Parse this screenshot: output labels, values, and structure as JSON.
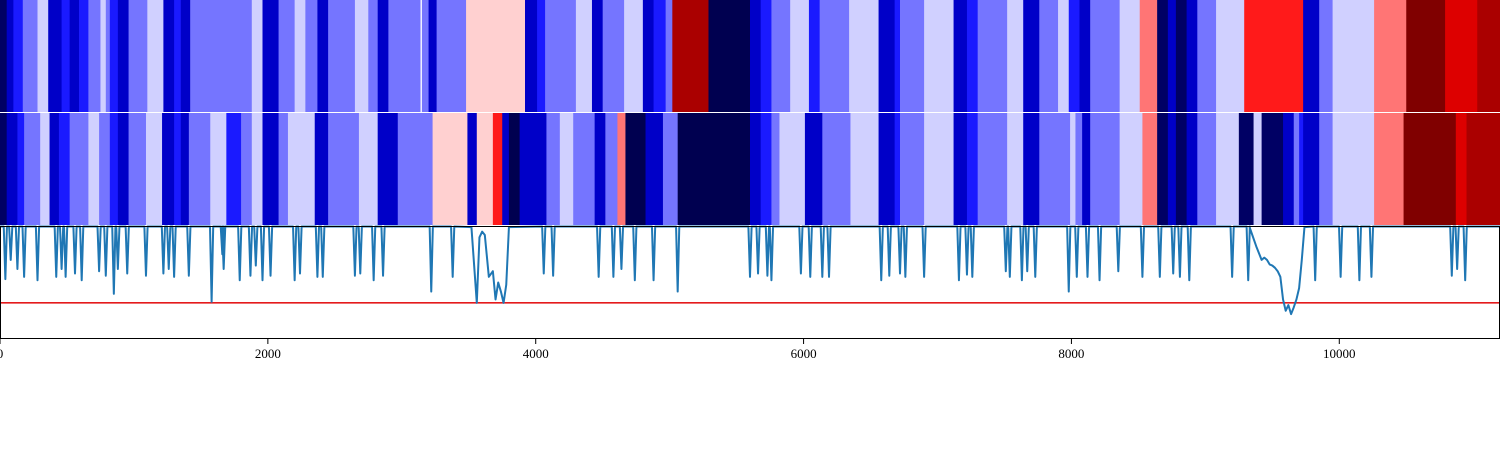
{
  "chart_data": [
    {
      "type": "heatmap",
      "panel": "top-strip",
      "colormap": "seismic",
      "x_extent": [
        0,
        11200
      ],
      "segments": [
        [
          0,
          50,
          "#000064"
        ],
        [
          50,
          100,
          "#0000c8"
        ],
        [
          100,
          170,
          "#1a1aff"
        ],
        [
          170,
          280,
          "#7575ff"
        ],
        [
          280,
          360,
          "#d0d0ff"
        ],
        [
          360,
          460,
          "#0000c8"
        ],
        [
          460,
          520,
          "#1a1aff"
        ],
        [
          520,
          590,
          "#0000c8"
        ],
        [
          590,
          660,
          "#1a1aff"
        ],
        [
          660,
          750,
          "#7575ff"
        ],
        [
          750,
          790,
          "#d0d0ff"
        ],
        [
          790,
          820,
          "#7575ff"
        ],
        [
          820,
          880,
          "#1a1aff"
        ],
        [
          880,
          960,
          "#0000c8"
        ],
        [
          960,
          1100,
          "#7575ff"
        ],
        [
          1100,
          1220,
          "#d0d0ff"
        ],
        [
          1220,
          1300,
          "#0000c8"
        ],
        [
          1300,
          1350,
          "#1a1aff"
        ],
        [
          1350,
          1420,
          "#0000c8"
        ],
        [
          1420,
          1880,
          "#7575ff"
        ],
        [
          1880,
          1960,
          "#d0d0ff"
        ],
        [
          1960,
          2080,
          "#0000c8"
        ],
        [
          2080,
          2200,
          "#7575ff"
        ],
        [
          2200,
          2280,
          "#d0d0ff"
        ],
        [
          2280,
          2370,
          "#7575ff"
        ],
        [
          2370,
          2450,
          "#0000c8"
        ],
        [
          2450,
          2650,
          "#7575ff"
        ],
        [
          2650,
          2750,
          "#d0d0ff"
        ],
        [
          2750,
          2820,
          "#7575ff"
        ],
        [
          2820,
          2900,
          "#0000c8"
        ],
        [
          2900,
          3140,
          "#7575ff"
        ],
        [
          3140,
          3150,
          "#ffffff"
        ],
        [
          3150,
          3200,
          "#7575ff"
        ],
        [
          3200,
          3260,
          "#0000c8"
        ],
        [
          3260,
          3480,
          "#7575ff"
        ],
        [
          3480,
          3920,
          "#ffd0d0"
        ],
        [
          3920,
          4010,
          "#0000c8"
        ],
        [
          4010,
          4070,
          "#1a1aff"
        ],
        [
          4070,
          4300,
          "#7575ff"
        ],
        [
          4300,
          4420,
          "#d0d0ff"
        ],
        [
          4420,
          4500,
          "#0000c8"
        ],
        [
          4500,
          4660,
          "#7575ff"
        ],
        [
          4660,
          4800,
          "#d0d0ff"
        ],
        [
          4800,
          4880,
          "#0000c8"
        ],
        [
          4880,
          4970,
          "#1a1aff"
        ],
        [
          4970,
          5020,
          "#7575ff"
        ],
        [
          5020,
          5290,
          "#aa0000"
        ],
        [
          5290,
          5600,
          "#000050"
        ],
        [
          5600,
          5680,
          "#0000c8"
        ],
        [
          5680,
          5760,
          "#1a1aff"
        ],
        [
          5760,
          5900,
          "#7575ff"
        ],
        [
          5900,
          6040,
          "#d0d0ff"
        ],
        [
          6040,
          6120,
          "#1a1aff"
        ],
        [
          6120,
          6340,
          "#7575ff"
        ],
        [
          6340,
          6560,
          "#d0d0ff"
        ],
        [
          6560,
          6680,
          "#0000c8"
        ],
        [
          6680,
          6720,
          "#1a1aff"
        ],
        [
          6720,
          6900,
          "#7575ff"
        ],
        [
          6900,
          7120,
          "#d0d0ff"
        ],
        [
          7120,
          7220,
          "#0000c8"
        ],
        [
          7220,
          7300,
          "#1a1aff"
        ],
        [
          7300,
          7520,
          "#7575ff"
        ],
        [
          7520,
          7640,
          "#d0d0ff"
        ],
        [
          7640,
          7760,
          "#0000c8"
        ],
        [
          7760,
          7900,
          "#7575ff"
        ],
        [
          7900,
          7980,
          "#d0d0ff"
        ],
        [
          7980,
          8060,
          "#1a1aff"
        ],
        [
          8060,
          8140,
          "#0000c8"
        ],
        [
          8140,
          8360,
          "#7575ff"
        ],
        [
          8360,
          8510,
          "#d0d0ff"
        ],
        [
          8510,
          8640,
          "#ff7575"
        ],
        [
          8640,
          8720,
          "#000064"
        ],
        [
          8720,
          8780,
          "#0000c8"
        ],
        [
          8780,
          8860,
          "#000064"
        ],
        [
          8860,
          8940,
          "#0000c8"
        ],
        [
          8940,
          9080,
          "#7575ff"
        ],
        [
          9080,
          9290,
          "#d0d0ff"
        ],
        [
          9290,
          9730,
          "#ff1a1a"
        ],
        [
          9730,
          9850,
          "#0000c8"
        ],
        [
          9850,
          9950,
          "#7575ff"
        ],
        [
          9950,
          10260,
          "#d0d0ff"
        ],
        [
          10260,
          10500,
          "#ff7575"
        ],
        [
          10500,
          10790,
          "#800000"
        ],
        [
          10790,
          11030,
          "#dd0000"
        ],
        [
          11030,
          11200,
          "#aa0000"
        ]
      ]
    },
    {
      "type": "heatmap",
      "panel": "middle-strip",
      "colormap": "seismic",
      "x_extent": [
        0,
        11200
      ],
      "segments": [
        [
          0,
          50,
          "#000064"
        ],
        [
          50,
          130,
          "#0000c8"
        ],
        [
          130,
          180,
          "#1a1aff"
        ],
        [
          180,
          300,
          "#7575ff"
        ],
        [
          300,
          370,
          "#d0d0ff"
        ],
        [
          370,
          440,
          "#0000c8"
        ],
        [
          440,
          520,
          "#1a1aff"
        ],
        [
          520,
          660,
          "#7575ff"
        ],
        [
          660,
          740,
          "#d0d0ff"
        ],
        [
          740,
          820,
          "#7575ff"
        ],
        [
          820,
          880,
          "#1a1aff"
        ],
        [
          880,
          960,
          "#0000c8"
        ],
        [
          960,
          1090,
          "#7575ff"
        ],
        [
          1090,
          1210,
          "#d0d0ff"
        ],
        [
          1210,
          1300,
          "#0000c8"
        ],
        [
          1300,
          1350,
          "#1a1aff"
        ],
        [
          1350,
          1410,
          "#0000c8"
        ],
        [
          1410,
          1570,
          "#7575ff"
        ],
        [
          1570,
          1690,
          "#d0d0ff"
        ],
        [
          1690,
          1800,
          "#1a1aff"
        ],
        [
          1800,
          1880,
          "#7575ff"
        ],
        [
          1880,
          1960,
          "#d0d0ff"
        ],
        [
          1960,
          2080,
          "#0000c8"
        ],
        [
          2080,
          2150,
          "#7575ff"
        ],
        [
          2150,
          2350,
          "#d0d0ff"
        ],
        [
          2350,
          2450,
          "#0000c8"
        ],
        [
          2450,
          2680,
          "#7575ff"
        ],
        [
          2680,
          2820,
          "#d0d0ff"
        ],
        [
          2820,
          2970,
          "#0000c8"
        ],
        [
          2970,
          3230,
          "#7575ff"
        ],
        [
          3230,
          3490,
          "#ffd0d0"
        ],
        [
          3490,
          3560,
          "#0000c8"
        ],
        [
          3560,
          3680,
          "#ffd0d0"
        ],
        [
          3680,
          3750,
          "#ff1a1a"
        ],
        [
          3750,
          3800,
          "#0000c8"
        ],
        [
          3800,
          3880,
          "#000050"
        ],
        [
          3880,
          4080,
          "#0000c8"
        ],
        [
          4080,
          4180,
          "#7575ff"
        ],
        [
          4180,
          4280,
          "#d0d0ff"
        ],
        [
          4280,
          4440,
          "#7575ff"
        ],
        [
          4440,
          4520,
          "#0000c8"
        ],
        [
          4520,
          4610,
          "#7575ff"
        ],
        [
          4610,
          4670,
          "#ff7575"
        ],
        [
          4670,
          4820,
          "#000050"
        ],
        [
          4820,
          4950,
          "#0000c8"
        ],
        [
          4950,
          5060,
          "#7575ff"
        ],
        [
          5060,
          5600,
          "#000050"
        ],
        [
          5600,
          5680,
          "#0000c8"
        ],
        [
          5680,
          5760,
          "#1a1aff"
        ],
        [
          5760,
          5820,
          "#7575ff"
        ],
        [
          5820,
          6010,
          "#d0d0ff"
        ],
        [
          6010,
          6140,
          "#0000c8"
        ],
        [
          6140,
          6350,
          "#7575ff"
        ],
        [
          6350,
          6560,
          "#d0d0ff"
        ],
        [
          6560,
          6680,
          "#0000c8"
        ],
        [
          6680,
          6720,
          "#1a1aff"
        ],
        [
          6720,
          6900,
          "#7575ff"
        ],
        [
          6900,
          7120,
          "#d0d0ff"
        ],
        [
          7120,
          7220,
          "#0000c8"
        ],
        [
          7220,
          7300,
          "#1a1aff"
        ],
        [
          7300,
          7520,
          "#7575ff"
        ],
        [
          7520,
          7640,
          "#d0d0ff"
        ],
        [
          7640,
          7760,
          "#0000c8"
        ],
        [
          7760,
          7990,
          "#7575ff"
        ],
        [
          7990,
          8030,
          "#d0d0ff"
        ],
        [
          8030,
          8080,
          "#7575ff"
        ],
        [
          8080,
          8140,
          "#0000c8"
        ],
        [
          8140,
          8360,
          "#7575ff"
        ],
        [
          8360,
          8530,
          "#d0d0ff"
        ],
        [
          8530,
          8640,
          "#ff7575"
        ],
        [
          8640,
          8720,
          "#000064"
        ],
        [
          8720,
          8780,
          "#0000c8"
        ],
        [
          8780,
          8860,
          "#000064"
        ],
        [
          8860,
          8940,
          "#0000c8"
        ],
        [
          8940,
          9080,
          "#7575ff"
        ],
        [
          9080,
          9250,
          "#d0d0ff"
        ],
        [
          9250,
          9360,
          "#000064"
        ],
        [
          9360,
          9420,
          "#d0d0ff"
        ],
        [
          9420,
          9580,
          "#000064"
        ],
        [
          9580,
          9660,
          "#0000c8"
        ],
        [
          9660,
          9700,
          "#7575ff"
        ],
        [
          9700,
          9730,
          "#1a1aff"
        ],
        [
          9730,
          9850,
          "#0000c8"
        ],
        [
          9850,
          9950,
          "#7575ff"
        ],
        [
          9950,
          10260,
          "#d0d0ff"
        ],
        [
          10260,
          10480,
          "#ff7575"
        ],
        [
          10480,
          10870,
          "#800000"
        ],
        [
          10870,
          10950,
          "#dd0000"
        ],
        [
          10950,
          11200,
          "#aa0000"
        ]
      ]
    },
    {
      "type": "line",
      "panel": "bottom-line",
      "x_range": [
        0,
        11200
      ],
      "y_range": [
        0,
        1
      ],
      "line_color": "#1f77b4",
      "threshold": {
        "value": 0.32,
        "color": "#e41a1c"
      },
      "baseline": 0.995,
      "dips": [
        [
          40,
          0.53
        ],
        [
          80,
          0.7
        ],
        [
          130,
          0.62
        ],
        [
          180,
          0.55
        ],
        [
          280,
          0.52
        ],
        [
          420,
          0.55
        ],
        [
          460,
          0.62
        ],
        [
          490,
          0.55
        ],
        [
          560,
          0.58
        ],
        [
          610,
          0.52
        ],
        [
          740,
          0.6
        ],
        [
          790,
          0.56
        ],
        [
          850,
          0.4
        ],
        [
          880,
          0.62
        ],
        [
          950,
          0.58
        ],
        [
          1090,
          0.56
        ],
        [
          1220,
          0.58
        ],
        [
          1260,
          0.62
        ],
        [
          1300,
          0.55
        ],
        [
          1410,
          0.56
        ],
        [
          1580,
          0.33
        ],
        [
          1660,
          0.75
        ],
        [
          1670,
          0.62
        ],
        [
          1790,
          0.52
        ],
        [
          1870,
          0.56
        ],
        [
          1910,
          0.65
        ],
        [
          1960,
          0.52
        ],
        [
          2020,
          0.56
        ],
        [
          2200,
          0.52
        ],
        [
          2240,
          0.58
        ],
        [
          2370,
          0.55
        ],
        [
          2410,
          0.55
        ],
        [
          2650,
          0.56
        ],
        [
          2690,
          0.58
        ],
        [
          2790,
          0.52
        ],
        [
          2860,
          0.56
        ],
        [
          3220,
          0.42
        ],
        [
          3380,
          0.55
        ],
        [
          4060,
          0.58
        ],
        [
          4130,
          0.56
        ],
        [
          4470,
          0.55
        ],
        [
          4580,
          0.55
        ],
        [
          4640,
          0.62
        ],
        [
          4740,
          0.52
        ],
        [
          4880,
          0.52
        ],
        [
          5060,
          0.42
        ],
        [
          5600,
          0.55
        ],
        [
          5660,
          0.58
        ],
        [
          5730,
          0.56
        ],
        [
          5760,
          0.52
        ],
        [
          5980,
          0.58
        ],
        [
          6050,
          0.55
        ],
        [
          6140,
          0.55
        ],
        [
          6190,
          0.55
        ],
        [
          6580,
          0.52
        ],
        [
          6640,
          0.56
        ],
        [
          6720,
          0.58
        ],
        [
          6760,
          0.55
        ],
        [
          6900,
          0.55
        ],
        [
          7160,
          0.52
        ],
        [
          7220,
          0.57
        ],
        [
          7260,
          0.55
        ],
        [
          7510,
          0.6
        ],
        [
          7540,
          0.55
        ],
        [
          7630,
          0.52
        ],
        [
          7670,
          0.6
        ],
        [
          7730,
          0.55
        ],
        [
          7980,
          0.42
        ],
        [
          8040,
          0.55
        ],
        [
          8120,
          0.55
        ],
        [
          8210,
          0.52
        ],
        [
          8350,
          0.6
        ],
        [
          8530,
          0.55
        ],
        [
          8660,
          0.55
        ],
        [
          8760,
          0.58
        ],
        [
          8810,
          0.55
        ],
        [
          8880,
          0.52
        ],
        [
          9200,
          0.55
        ],
        [
          9320,
          0.52
        ],
        [
          9820,
          0.52
        ],
        [
          10010,
          0.55
        ],
        [
          10150,
          0.52
        ],
        [
          10240,
          0.55
        ],
        [
          10840,
          0.56
        ],
        [
          10880,
          0.62
        ],
        [
          10940,
          0.52
        ]
      ],
      "troughs": [
        {
          "x": [
            3520,
            3560,
            3580,
            3600,
            3620,
            3650,
            3680,
            3700,
            3720,
            3740,
            3760,
            3780,
            3800
          ],
          "y": [
            0.99,
            0.32,
            0.9,
            0.95,
            0.92,
            0.55,
            0.6,
            0.35,
            0.5,
            0.42,
            0.32,
            0.48,
            0.99
          ]
        },
        {
          "x": [
            9330,
            9380,
            9420,
            9440,
            9460,
            9480,
            9500,
            9520,
            9540,
            9560,
            9580,
            9600,
            9620,
            9640,
            9660,
            9680,
            9700,
            9720,
            9740
          ],
          "y": [
            0.99,
            0.82,
            0.7,
            0.72,
            0.7,
            0.66,
            0.65,
            0.63,
            0.6,
            0.55,
            0.35,
            0.25,
            0.3,
            0.22,
            0.28,
            0.35,
            0.45,
            0.7,
            0.99
          ]
        }
      ],
      "xticks": [
        0,
        2000,
        4000,
        6000,
        8000,
        10000
      ],
      "xtick_labels": [
        "0",
        "2000",
        "4000",
        "6000",
        "8000",
        "10000"
      ]
    }
  ]
}
